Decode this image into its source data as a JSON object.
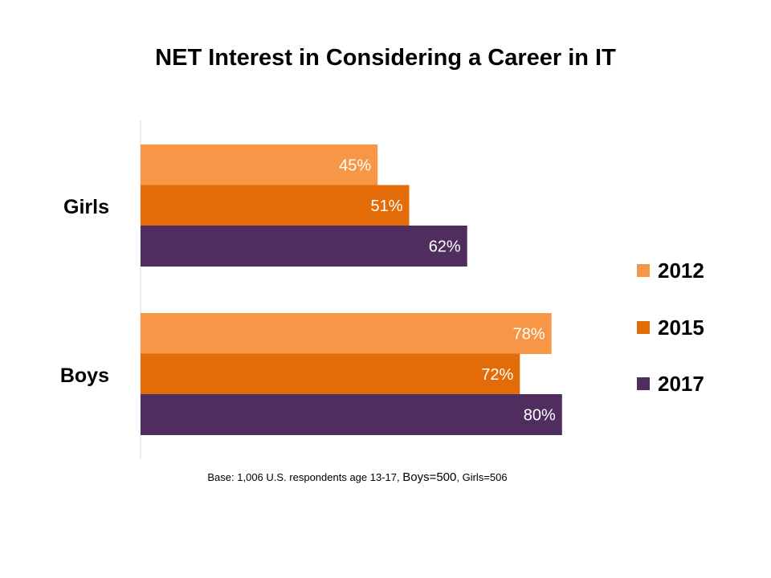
{
  "chart_data": {
    "type": "bar",
    "orientation": "horizontal",
    "title": "NET Interest in Considering a Career in IT",
    "categories": [
      "Girls",
      "Boys"
    ],
    "series": [
      {
        "name": "2012",
        "color": "#F79646",
        "values": [
          45,
          78
        ],
        "labels": [
          "45%",
          "78%"
        ]
      },
      {
        "name": "2015",
        "color": "#E36C09",
        "values": [
          51,
          72
        ],
        "labels": [
          "51%",
          "72%"
        ]
      },
      {
        "name": "2017",
        "color": "#4F2D5E",
        "values": [
          62,
          80
        ],
        "labels": [
          "62%",
          "80%"
        ]
      }
    ],
    "xlim": [
      0,
      100
    ],
    "grid": false,
    "legend_position": "right"
  },
  "footnote": {
    "part1": "Base: 1,006 U.S. respondents  age 13-17, ",
    "part2": "Boys=500",
    "part3": ", Girls=506"
  }
}
